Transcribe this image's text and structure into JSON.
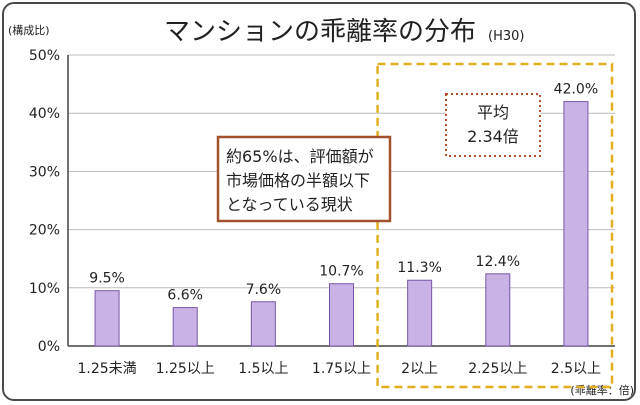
{
  "chart_data": {
    "type": "bar",
    "title": "マンションの乖離率の分布",
    "subtitle": "(H30)",
    "ylabel": "(構成比)",
    "xlabel": "(乖離率：倍)",
    "ylim": [
      0,
      50
    ],
    "yticks": [
      "0%",
      "10%",
      "20%",
      "30%",
      "40%",
      "50%"
    ],
    "categories": [
      "1.25未満",
      "1.25以上",
      "1.5以上",
      "1.75以上",
      "2以上",
      "2.25以上",
      "2.5以上"
    ],
    "values": [
      9.5,
      6.6,
      7.6,
      10.7,
      11.3,
      12.4,
      42.0
    ],
    "value_labels": [
      "9.5%",
      "6.6%",
      "7.6%",
      "10.7%",
      "11.3%",
      "12.4%",
      "42.0%"
    ],
    "bar_color": "#c9b3e6",
    "bar_border": "#7a55a8",
    "highlight_start_index": 4,
    "highlight_color": "#e0b020",
    "annotations": {
      "note_lines": [
        "約65%は、評価額が",
        "市場価格の半額以下",
        "となっている現状"
      ],
      "note_border": "#a0522d",
      "average_lines": [
        "平均",
        "2.34倍"
      ],
      "average_border": "#b5502a"
    }
  }
}
